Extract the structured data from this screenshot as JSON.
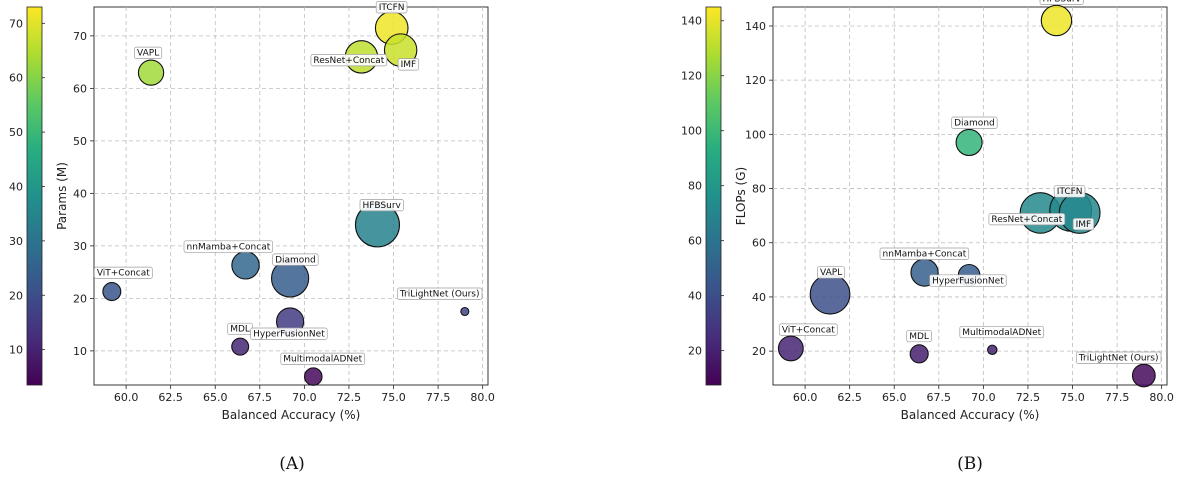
{
  "chart_data": [
    {
      "type": "scatter",
      "panel_label": "(A)",
      "title": "",
      "xlabel": "Balanced Accuracy (%)",
      "ylabel": "Params (M)",
      "colorbar_label": "",
      "xlim": [
        58.2,
        80.3
      ],
      "ylim": [
        3.5,
        75.5
      ],
      "xticks": [
        60.0,
        62.5,
        65.0,
        67.5,
        70.0,
        72.5,
        75.0,
        77.5,
        80.0
      ],
      "yticks": [
        10,
        20,
        30,
        40,
        50,
        60,
        70
      ],
      "colorbar_range": [
        3.5,
        73
      ],
      "colorbar_ticks": [
        10,
        20,
        30,
        40,
        50,
        60,
        70
      ],
      "colormap": "viridis",
      "grid": true,
      "size_encodes": "FLOPs (G)",
      "points": [
        {
          "label": "ViT+Concat",
          "x": 59.2,
          "y": 21.3,
          "size": 21
        },
        {
          "label": "VAPL",
          "x": 61.4,
          "y": 63.0,
          "size": 41
        },
        {
          "label": "MDL",
          "x": 66.4,
          "y": 10.8,
          "size": 19
        },
        {
          "label": "nnMamba+Concat",
          "x": 66.7,
          "y": 26.3,
          "size": 49
        },
        {
          "label": "Diamond",
          "x": 69.2,
          "y": 23.8,
          "size": 97
        },
        {
          "label": "HyperFusionNet",
          "x": 69.2,
          "y": 15.6,
          "size": 48
        },
        {
          "label": "MultimodalADNet",
          "x": 70.5,
          "y": 5.1,
          "size": 20
        },
        {
          "label": "ResNet+Concat",
          "x": 73.2,
          "y": 66.0,
          "size": 71
        },
        {
          "label": "HFBSurv",
          "x": 74.1,
          "y": 34.0,
          "size": 142
        },
        {
          "label": "ITCFN",
          "x": 74.9,
          "y": 71.5,
          "size": 72
        },
        {
          "label": "IMF",
          "x": 75.4,
          "y": 67.3,
          "size": 71
        },
        {
          "label": "TriLightNet (Ours)",
          "x": 79.0,
          "y": 17.5,
          "size": 11
        }
      ]
    },
    {
      "type": "scatter",
      "panel_label": "(B)",
      "title": "",
      "xlabel": "Balanced Accuracy (%)",
      "ylabel": "FLOPs (G)",
      "colorbar_label": "",
      "xlim": [
        58.2,
        80.3
      ],
      "ylim": [
        7.5,
        147
      ],
      "xticks": [
        60.0,
        62.5,
        65.0,
        67.5,
        70.0,
        72.5,
        75.0,
        77.5,
        80.0
      ],
      "yticks": [
        20,
        40,
        60,
        80,
        100,
        120,
        140
      ],
      "colorbar_range": [
        7.5,
        145
      ],
      "colorbar_ticks": [
        20,
        40,
        60,
        80,
        100,
        120,
        140
      ],
      "colormap": "viridis",
      "grid": true,
      "size_encodes": "Params (M)",
      "points": [
        {
          "label": "ViT+Concat",
          "x": 59.2,
          "y": 21.0,
          "size": 21.3
        },
        {
          "label": "VAPL",
          "x": 61.4,
          "y": 41.0,
          "size": 63.0
        },
        {
          "label": "MDL",
          "x": 66.4,
          "y": 19.0,
          "size": 10.8
        },
        {
          "label": "nnMamba+Concat",
          "x": 66.7,
          "y": 49.0,
          "size": 26.3
        },
        {
          "label": "Diamond",
          "x": 69.2,
          "y": 97.0,
          "size": 23.8
        },
        {
          "label": "HyperFusionNet",
          "x": 69.2,
          "y": 48.0,
          "size": 15.6
        },
        {
          "label": "MultimodalADNet",
          "x": 70.5,
          "y": 20.5,
          "size": 5.1
        },
        {
          "label": "ResNet+Concat",
          "x": 73.2,
          "y": 71.0,
          "size": 66.0
        },
        {
          "label": "HFBSurv",
          "x": 74.1,
          "y": 142.0,
          "size": 34.0
        },
        {
          "label": "ITCFN",
          "x": 74.9,
          "y": 72.0,
          "size": 71.5
        },
        {
          "label": "IMF",
          "x": 75.4,
          "y": 71.0,
          "size": 67.3
        },
        {
          "label": "TriLightNet (Ours)",
          "x": 79.0,
          "y": 11.0,
          "size": 17.5
        }
      ]
    }
  ]
}
